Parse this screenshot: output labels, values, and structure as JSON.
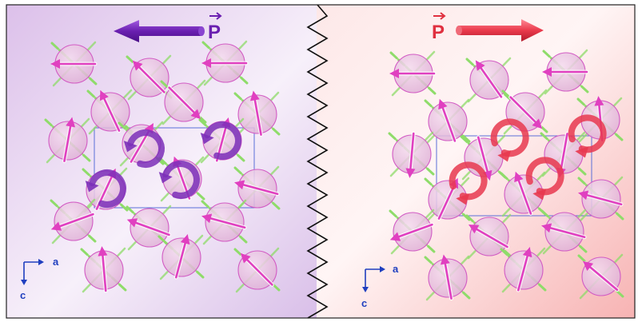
{
  "panels": {
    "left": {
      "polarization_label": "P",
      "arrow_direction": "left",
      "rotation": "clockwise",
      "color": "#7b2fb8",
      "background": "#ead6f0"
    },
    "right": {
      "polarization_label": "P",
      "arrow_direction": "right",
      "rotation": "counterclockwise",
      "color": "#e8384f",
      "background": "#fbdede"
    }
  },
  "axes": {
    "horizontal_label": "a",
    "vertical_label": "c",
    "color": "#1f3fbf"
  },
  "separator": "zigzag",
  "colors": {
    "atom_fill": "#e3b8dc",
    "atom_stroke": "#d25bc4",
    "bond": "#8fdc6a",
    "moment_arrow": "#e040c0",
    "unit_cell": "#5a6fd8"
  }
}
